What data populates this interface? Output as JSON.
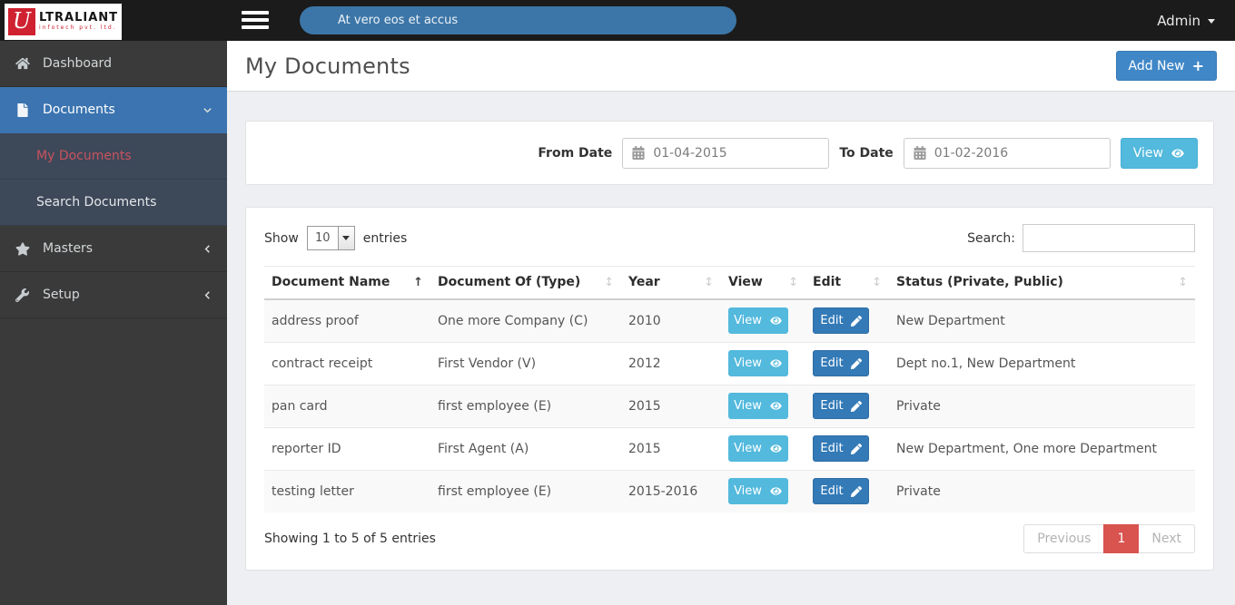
{
  "brand": {
    "initial": "U",
    "name": "LTRALIANT",
    "tagline": "infotech pvt. ltd."
  },
  "topbar": {
    "message": "At vero eos et accus",
    "user_label": "Admin"
  },
  "sidebar": {
    "items": [
      {
        "label": "Dashboard"
      },
      {
        "label": "Documents"
      },
      {
        "label": "My Documents"
      },
      {
        "label": "Search Documents"
      },
      {
        "label": "Masters"
      },
      {
        "label": "Setup"
      }
    ]
  },
  "page": {
    "title": "My Documents",
    "add_new_label": "Add New"
  },
  "filter": {
    "from_label": "From Date",
    "from_value": "01-04-2015",
    "to_label": "To Date",
    "to_value": "01-02-2016",
    "view_label": "View"
  },
  "table": {
    "show_label": "Show",
    "page_length": "10",
    "entries_label": "entries",
    "search_label": "Search:",
    "columns": [
      "Document Name",
      "Document Of (Type)",
      "Year",
      "View",
      "Edit",
      "Status (Private, Public)"
    ],
    "action_view": "View",
    "action_edit": "Edit",
    "rows": [
      {
        "name": "address proof",
        "type": "One more Company (C)",
        "year": "2010",
        "status": "New Department"
      },
      {
        "name": "contract receipt",
        "type": "First Vendor (V)",
        "year": "2012",
        "status": "Dept no.1, New Department"
      },
      {
        "name": "pan card",
        "type": "first employee (E)",
        "year": "2015",
        "status": "Private"
      },
      {
        "name": "reporter ID",
        "type": "First Agent (A)",
        "year": "2015",
        "status": "New Department, One more Department"
      },
      {
        "name": "testing letter",
        "type": "first employee (E)",
        "year": "2015-2016",
        "status": "Private"
      }
    ],
    "summary": "Showing 1 to 5 of 5 entries",
    "pagination": {
      "previous": "Previous",
      "current": "1",
      "next": "Next"
    }
  },
  "colors": {
    "accent_blue": "#3b74b0",
    "info_cyan": "#53b9dd",
    "primary_blue": "#337ab7",
    "active_page_red": "#d9534f",
    "brand_red": "#cf2130",
    "submenu_bg": "#3d4859",
    "submenu_active_text": "#c9535f"
  }
}
